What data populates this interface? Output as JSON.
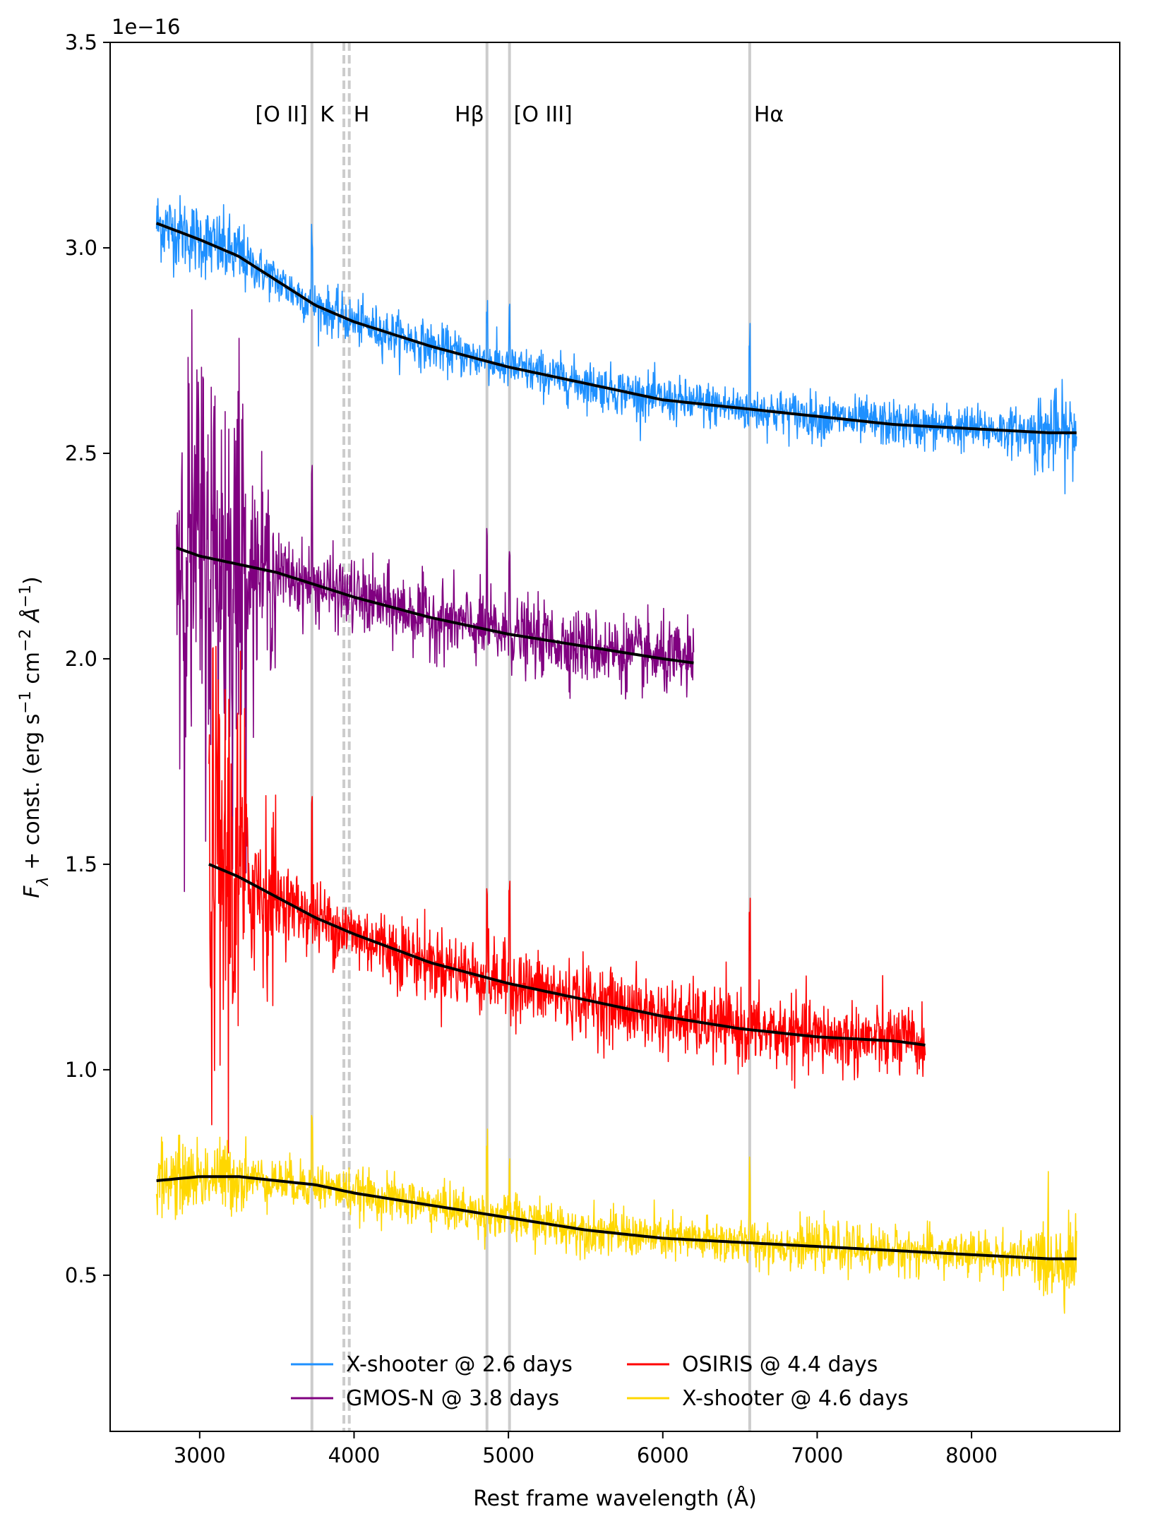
{
  "chart_data": {
    "type": "line",
    "title": "",
    "xlabel": "Rest frame wavelength (Å)",
    "ylabel": "F_λ + const. (erg s⁻¹ cm⁻² Å⁻¹)",
    "y_offset_text": "1e−16",
    "xlim": [
      2420,
      8960
    ],
    "ylim": [
      0.12,
      3.5
    ],
    "x_ticks": [
      3000,
      4000,
      5000,
      6000,
      7000,
      8000
    ],
    "y_ticks": [
      0.5,
      1.0,
      1.5,
      2.0,
      2.5,
      3.0,
      3.5
    ],
    "x_tick_labels": [
      "3000",
      "4000",
      "5000",
      "6000",
      "7000",
      "8000"
    ],
    "y_tick_labels": [
      "0.5",
      "1.0",
      "1.5",
      "2.0",
      "2.5",
      "3.0",
      "3.5"
    ],
    "grid": false,
    "legend_position": "bottom-center",
    "line_markers": [
      {
        "label": "[O II]",
        "x": 3727,
        "style": "solid"
      },
      {
        "label": "K",
        "x": 3934,
        "style": "dashed"
      },
      {
        "label": "H",
        "x": 3969,
        "style": "dashed"
      },
      {
        "label": "Hβ",
        "x": 4861,
        "style": "solid"
      },
      {
        "label": "[O III]",
        "x": 5007,
        "style": "solid"
      },
      {
        "label": "Hα",
        "x": 6563,
        "style": "solid"
      }
    ],
    "series": [
      {
        "name": "X-shooter @ 2.6 days",
        "color": "#1e90ff",
        "x_range": [
          2720,
          8680
        ],
        "noise": 0.05,
        "model": {
          "x": [
            2720,
            3000,
            3250,
            3500,
            3750,
            4000,
            4500,
            5000,
            5500,
            6000,
            6500,
            7000,
            7500,
            8000,
            8500,
            8680
          ],
          "y": [
            3.06,
            3.02,
            2.98,
            2.92,
            2.86,
            2.82,
            2.76,
            2.71,
            2.67,
            2.63,
            2.61,
            2.59,
            2.57,
            2.56,
            2.55,
            2.55
          ]
        }
      },
      {
        "name": "GMOS-N @ 3.8 days",
        "color": "#800080",
        "x_range": [
          2850,
          6200
        ],
        "noise": 0.08,
        "model": {
          "x": [
            2850,
            3000,
            3500,
            4000,
            4500,
            5000,
            5500,
            6000,
            6200
          ],
          "y": [
            2.27,
            2.25,
            2.21,
            2.15,
            2.1,
            2.06,
            2.03,
            2.0,
            1.99
          ]
        }
      },
      {
        "name": "OSIRIS @ 4.4 days",
        "color": "#ff0000",
        "x_range": [
          3060,
          7700
        ],
        "noise": 0.08,
        "model": {
          "x": [
            3060,
            3250,
            3500,
            3750,
            4000,
            4500,
            5000,
            5500,
            6000,
            6500,
            7000,
            7500,
            7700
          ],
          "y": [
            1.5,
            1.47,
            1.42,
            1.37,
            1.33,
            1.26,
            1.21,
            1.17,
            1.13,
            1.1,
            1.08,
            1.07,
            1.06
          ]
        }
      },
      {
        "name": "X-shooter @ 4.6 days",
        "color": "#ffd700",
        "x_range": [
          2720,
          8680
        ],
        "noise": 0.05,
        "model": {
          "x": [
            2720,
            3000,
            3250,
            3500,
            3750,
            4000,
            4500,
            5000,
            5500,
            6000,
            6500,
            7000,
            7500,
            8000,
            8500,
            8680
          ],
          "y": [
            0.73,
            0.74,
            0.74,
            0.73,
            0.72,
            0.7,
            0.67,
            0.64,
            0.61,
            0.59,
            0.58,
            0.57,
            0.56,
            0.55,
            0.54,
            0.54
          ]
        }
      }
    ]
  }
}
